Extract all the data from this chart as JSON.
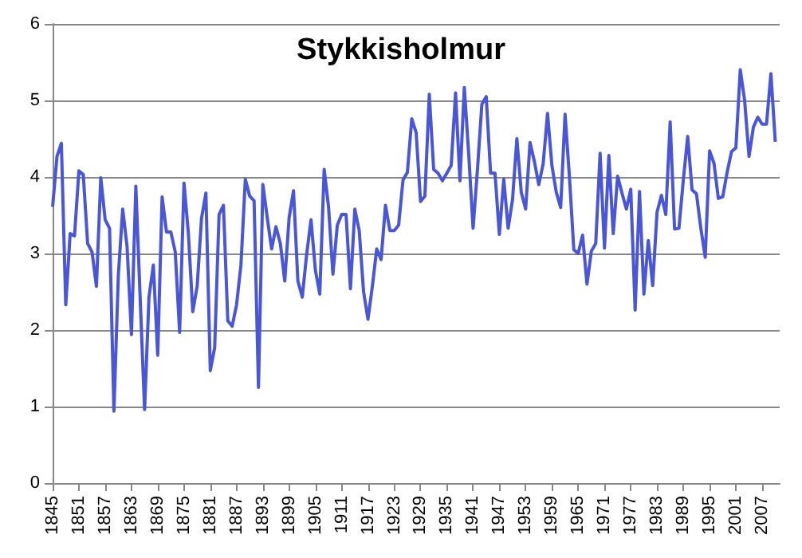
{
  "chart_data": {
    "type": "line",
    "title": "Stykkisholmur",
    "x": [
      1845,
      1846,
      1847,
      1848,
      1849,
      1850,
      1851,
      1852,
      1853,
      1854,
      1855,
      1856,
      1857,
      1858,
      1859,
      1860,
      1861,
      1862,
      1863,
      1864,
      1865,
      1866,
      1867,
      1868,
      1869,
      1870,
      1871,
      1872,
      1873,
      1874,
      1875,
      1876,
      1877,
      1878,
      1879,
      1880,
      1881,
      1882,
      1883,
      1884,
      1885,
      1886,
      1887,
      1888,
      1889,
      1890,
      1891,
      1892,
      1893,
      1894,
      1895,
      1896,
      1897,
      1898,
      1899,
      1900,
      1901,
      1902,
      1903,
      1904,
      1905,
      1906,
      1907,
      1908,
      1909,
      1910,
      1911,
      1912,
      1913,
      1914,
      1915,
      1916,
      1917,
      1918,
      1919,
      1920,
      1921,
      1922,
      1923,
      1924,
      1925,
      1926,
      1927,
      1928,
      1929,
      1930,
      1931,
      1932,
      1933,
      1934,
      1935,
      1936,
      1937,
      1938,
      1939,
      1940,
      1941,
      1942,
      1943,
      1944,
      1945,
      1946,
      1947,
      1948,
      1949,
      1950,
      1951,
      1952,
      1953,
      1954,
      1955,
      1956,
      1957,
      1958,
      1959,
      1960,
      1961,
      1962,
      1963,
      1964,
      1965,
      1966,
      1967,
      1968,
      1969,
      1970,
      1971,
      1972,
      1973,
      1974,
      1975,
      1976,
      1977,
      1978,
      1979,
      1980,
      1981,
      1982,
      1983,
      1984,
      1985,
      1986,
      1987,
      1988,
      1989,
      1990,
      1991,
      1992,
      1993,
      1994,
      1995,
      1996,
      1997,
      1998,
      1999,
      2000,
      2001,
      2002,
      2003,
      2004,
      2005,
      2006,
      2007,
      2008,
      2009,
      2010
    ],
    "series": [
      {
        "color": "#4a56d8",
        "values": [
          3.61,
          4.27,
          4.44,
          2.33,
          3.26,
          3.23,
          4.08,
          4.03,
          3.13,
          3.02,
          2.57,
          3.99,
          3.44,
          3.33,
          0.94,
          2.71,
          3.58,
          3.09,
          1.94,
          3.88,
          2.4,
          0.96,
          2.43,
          2.85,
          1.67,
          3.74,
          3.28,
          3.28,
          3.02,
          1.97,
          3.92,
          3.26,
          2.24,
          2.57,
          3.46,
          3.79,
          1.47,
          1.77,
          3.51,
          3.63,
          2.12,
          2.05,
          2.33,
          2.85,
          3.97,
          3.75,
          3.69,
          1.25,
          3.9,
          3.47,
          3.06,
          3.35,
          3.13,
          2.64,
          3.47,
          3.82,
          2.64,
          2.43,
          2.99,
          3.44,
          2.78,
          2.47,
          4.1,
          3.61,
          2.73,
          3.37,
          3.51,
          3.51,
          2.54,
          3.58,
          3.3,
          2.5,
          2.14,
          2.57,
          3.06,
          2.92,
          3.63,
          3.3,
          3.3,
          3.37,
          3.96,
          4.06,
          4.76,
          4.58,
          3.68,
          3.75,
          5.08,
          4.1,
          4.05,
          3.95,
          4.05,
          4.15,
          5.1,
          3.95,
          5.17,
          4.3,
          3.33,
          4.1,
          4.95,
          5.05,
          4.05,
          4.05,
          3.25,
          3.97,
          3.33,
          3.7,
          4.5,
          3.8,
          3.58,
          4.45,
          4.2,
          3.9,
          4.17,
          4.83,
          4.15,
          3.8,
          3.6,
          4.82,
          4.0,
          3.05,
          3.0,
          3.24,
          2.6,
          3.03,
          3.13,
          4.31,
          3.07,
          4.28,
          3.26,
          4.01,
          3.79,
          3.58,
          3.84,
          2.26,
          3.81,
          2.47,
          3.17,
          2.58,
          3.54,
          3.76,
          3.51,
          4.72,
          3.32,
          3.33,
          3.96,
          4.53,
          3.83,
          3.78,
          3.33,
          2.95,
          4.34,
          4.18,
          3.72,
          3.74,
          4.06,
          4.33,
          4.38,
          5.4,
          5.0,
          4.27,
          4.65,
          4.78,
          4.69,
          4.69,
          5.35,
          4.46
        ]
      }
    ],
    "xlim": [
      1845,
      2011
    ],
    "xticks": [
      1845,
      1851,
      1857,
      1863,
      1869,
      1875,
      1881,
      1887,
      1893,
      1899,
      1905,
      1911,
      1917,
      1923,
      1929,
      1935,
      1941,
      1947,
      1953,
      1959,
      1965,
      1971,
      1977,
      1983,
      1989,
      1995,
      2001,
      2007
    ],
    "ylim": [
      0,
      6
    ],
    "yticks": [
      0,
      1,
      2,
      3,
      4,
      5,
      6
    ],
    "grid": "y",
    "marker": "none",
    "line_style": "solid"
  }
}
